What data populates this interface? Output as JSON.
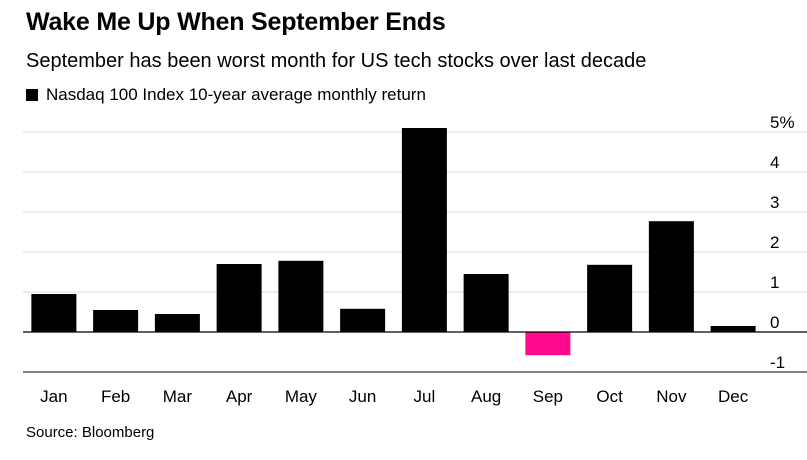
{
  "title": "Wake Me Up When September Ends",
  "subtitle": "September has been worst month for US tech stocks over last decade",
  "legend": {
    "label": "Nasdaq 100 Index 10-year average monthly return",
    "color": "#000000"
  },
  "source": "Source: Bloomberg",
  "colors": {
    "positive": "#000000",
    "highlight": "#ff0a8c",
    "grid": "#d9d9d9",
    "axis": "#000000"
  },
  "chart_data": {
    "type": "bar",
    "title": "Wake Me Up When September Ends",
    "subtitle": "September has been worst month for US tech stocks over last decade",
    "categories": [
      "Jan",
      "Feb",
      "Mar",
      "Apr",
      "May",
      "Jun",
      "Jul",
      "Aug",
      "Sep",
      "Oct",
      "Nov",
      "Dec"
    ],
    "series": [
      {
        "name": "Nasdaq 100 Index 10-year average monthly return",
        "values": [
          0.95,
          0.55,
          0.45,
          1.7,
          1.78,
          0.58,
          5.1,
          1.45,
          -0.58,
          1.68,
          2.77,
          0.15
        ]
      }
    ],
    "highlight_category": "Sep",
    "ylim": [
      -1,
      5
    ],
    "yticks": [
      -1,
      0,
      1,
      2,
      3,
      4,
      5
    ],
    "ytick_labels": [
      "-1",
      "0",
      "1",
      "2",
      "3",
      "4",
      "5%"
    ],
    "xlabel": "",
    "ylabel": "",
    "grid": true,
    "legend_position": "top-left"
  }
}
